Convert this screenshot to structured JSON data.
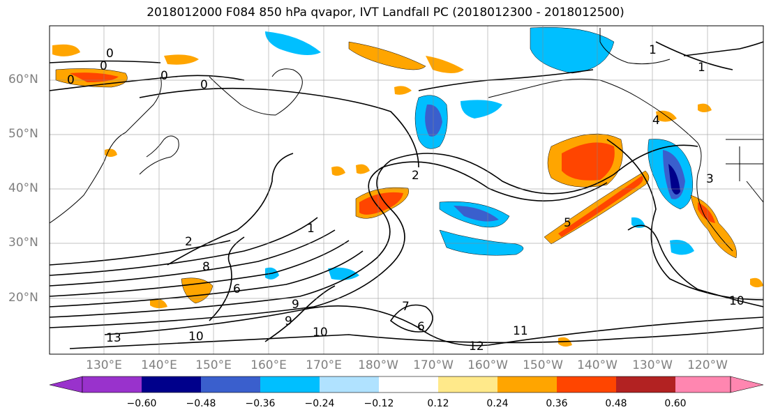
{
  "title": "2018012000 F084 850 hPa qvapor, IVT Landfall PC (2018012300 - 2018012500)",
  "lat_labels": [
    "60°N",
    "50°N",
    "40°N",
    "30°N",
    "20°N"
  ],
  "lon_labels": [
    "130°E",
    "140°E",
    "150°E",
    "160°E",
    "170°E",
    "180°W",
    "170°W",
    "160°W",
    "150°W",
    "140°W",
    "130°W",
    "120°W"
  ],
  "colorbar": {
    "colors": [
      "#9932cc",
      "#00008b",
      "#3a5fcd",
      "#00bfff",
      "#b0e2ff",
      "#ffffff",
      "#ffe98a",
      "#ffa500",
      "#ff4500",
      "#b22222",
      "#ff86b0"
    ],
    "ticks": [
      "−0.60",
      "−0.48",
      "−0.36",
      "−0.24",
      "−0.12",
      "0.12",
      "0.24",
      "0.36",
      "0.48",
      "0.60"
    ]
  },
  "contour_labels": [
    "0",
    "0",
    "0",
    "0",
    "0",
    "1",
    "1",
    "1",
    "2",
    "2",
    "3",
    "4",
    "5",
    "6",
    "6",
    "7",
    "8",
    "9",
    "9",
    "10",
    "10",
    "10",
    "11",
    "12",
    "13"
  ]
}
